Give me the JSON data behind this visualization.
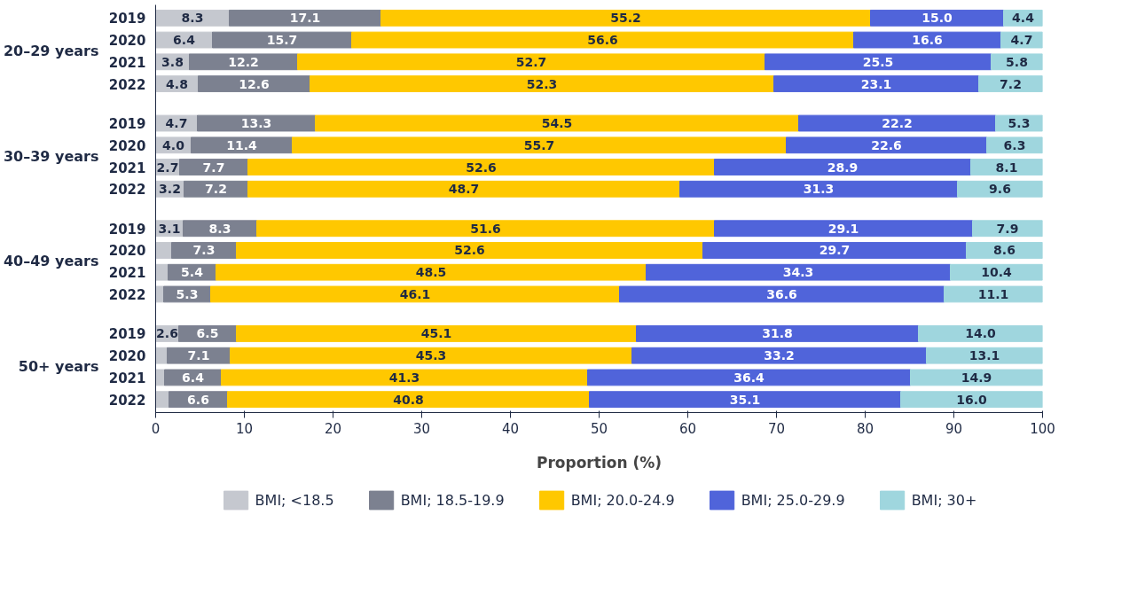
{
  "chart_data": {
    "type": "bar",
    "orientation": "horizontal",
    "stacked": true,
    "categories": [
      "2019",
      "2020",
      "2021",
      "2022",
      "2019",
      "2020",
      "2021",
      "2022",
      "2019",
      "2020",
      "2021",
      "2022",
      "2019",
      "2020",
      "2021",
      "2022"
    ],
    "annotations": [
      "20–29 years",
      "30–39 years",
      "40–49 years",
      "50+ years"
    ],
    "xlabel": "Proportion (%)",
    "xlim": [
      0,
      100
    ],
    "xticks": [
      0,
      10,
      20,
      30,
      40,
      50,
      60,
      70,
      80,
      90,
      100
    ],
    "grid": false,
    "legend": "bottom",
    "series": [
      {
        "name": "BMI; <18.5",
        "color": "#c5c8cf",
        "values": [
          8.3,
          6.4,
          3.8,
          4.8,
          4.7,
          4.0,
          2.7,
          3.2,
          3.1,
          1.8,
          1.4,
          0.9,
          2.6,
          1.3,
          1.0,
          1.5
        ],
        "value_labels": [
          "8.3",
          "6.4",
          "3.8",
          "4.8",
          "4.7",
          "4.0",
          "2.7",
          "3.2",
          "3.1",
          null,
          null,
          null,
          "2.6",
          null,
          null,
          null
        ]
      },
      {
        "name": "BMI; 18.5-19.9",
        "color": "#7c8190",
        "values": [
          17.1,
          15.7,
          12.2,
          12.6,
          13.3,
          11.4,
          7.7,
          7.2,
          8.3,
          7.3,
          5.4,
          5.3,
          6.5,
          7.1,
          6.4,
          6.6
        ],
        "value_labels": [
          "17.1",
          "15.7",
          "12.2",
          "12.6",
          "13.3",
          "11.4",
          "7.7",
          "7.2",
          "8.3",
          "7.3",
          "5.4",
          "5.3",
          "6.5",
          "7.1",
          "6.4",
          "6.6"
        ]
      },
      {
        "name": "BMI; 20.0-24.9",
        "color": "#ffc800",
        "values": [
          55.2,
          56.6,
          52.7,
          52.3,
          54.5,
          55.7,
          52.6,
          48.7,
          51.6,
          52.6,
          48.5,
          46.1,
          45.1,
          45.3,
          41.3,
          40.8
        ],
        "value_labels": [
          "55.2",
          "56.6",
          "52.7",
          "52.3",
          "54.5",
          "55.7",
          "52.6",
          "48.7",
          "51.6",
          "52.6",
          "48.5",
          "46.1",
          "45.1",
          "45.3",
          "41.3",
          "40.8"
        ]
      },
      {
        "name": "BMI; 25.0-29.9",
        "color": "#5064da",
        "values": [
          15.0,
          16.6,
          25.5,
          23.1,
          22.2,
          22.6,
          28.9,
          31.3,
          29.1,
          29.7,
          34.3,
          36.6,
          31.8,
          33.2,
          36.4,
          35.1
        ],
        "value_labels": [
          "15.0",
          "16.6",
          "25.5",
          "23.1",
          "22.2",
          "22.6",
          "28.9",
          "31.3",
          "29.1",
          "29.7",
          "34.3",
          "36.6",
          "31.8",
          "33.2",
          "36.4",
          "35.1"
        ]
      },
      {
        "name": "BMI; 30+",
        "color": "#9fd6de",
        "values": [
          4.4,
          4.7,
          5.8,
          7.2,
          5.3,
          6.3,
          8.1,
          9.6,
          7.9,
          8.6,
          10.4,
          11.1,
          14.0,
          13.1,
          14.9,
          16.0
        ],
        "value_labels": [
          "4.4",
          "4.7",
          "5.8",
          "7.2",
          "5.3",
          "6.3",
          "8.1",
          "9.6",
          "7.9",
          "8.6",
          "10.4",
          "11.1",
          "14.0",
          "13.1",
          "14.9",
          "16.0"
        ]
      }
    ]
  }
}
